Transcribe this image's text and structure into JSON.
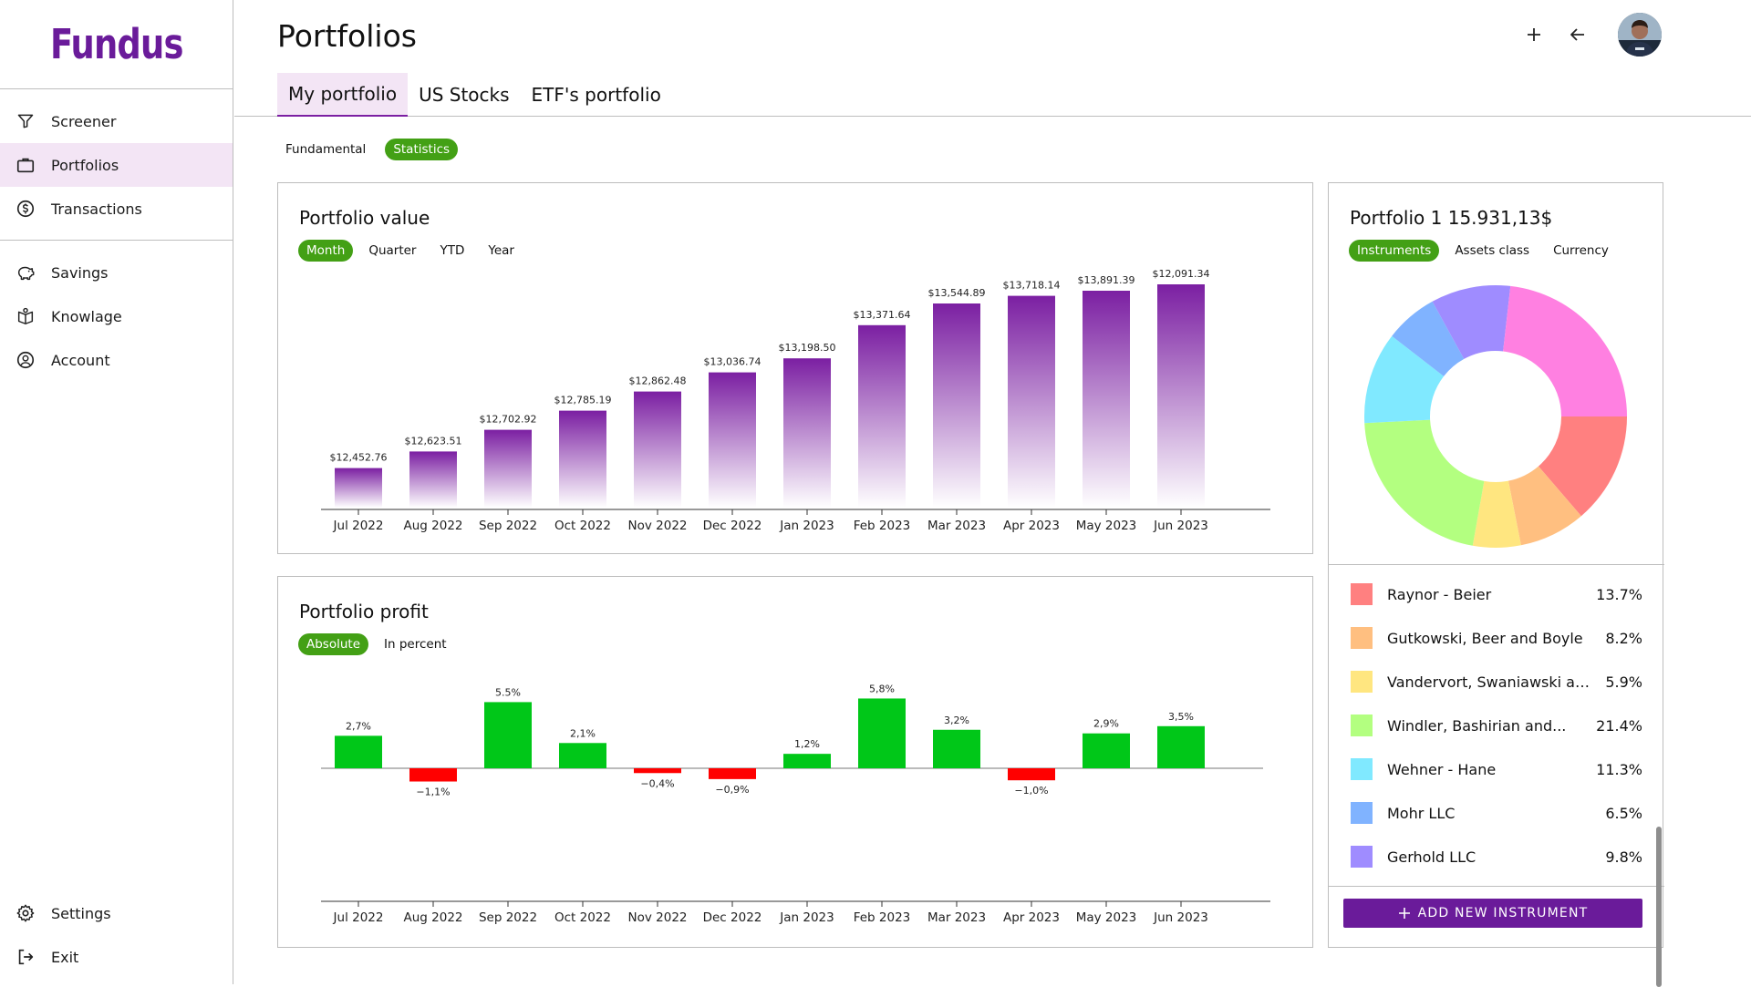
{
  "app": {
    "logo": "Fundus"
  },
  "sidebar": {
    "groups": [
      [
        {
          "label": "Screener",
          "icon": "filter-icon",
          "active": false
        },
        {
          "label": "Portfolios",
          "icon": "briefcase-icon",
          "active": true
        },
        {
          "label": "Transactions",
          "icon": "dollar-circle-icon",
          "active": false
        }
      ],
      [
        {
          "label": "Savings",
          "icon": "piggy-bank-icon",
          "active": false
        },
        {
          "label": "Knowlage",
          "icon": "book-icon",
          "active": false
        },
        {
          "label": "Account",
          "icon": "user-circle-icon",
          "active": false
        }
      ]
    ],
    "bottom": [
      {
        "label": "Settings",
        "icon": "gear-icon"
      },
      {
        "label": "Exit",
        "icon": "exit-icon"
      }
    ]
  },
  "header": {
    "title": "Portfolios",
    "tabs": [
      {
        "label": "My portfolio",
        "active": true
      },
      {
        "label": "US Stocks",
        "active": false
      },
      {
        "label": "ETF's portfolio",
        "active": false
      }
    ]
  },
  "view_toggle": [
    {
      "label": "Fundamental",
      "active": false
    },
    {
      "label": "Statistics",
      "active": true
    }
  ],
  "value_card": {
    "title": "Portfolio value",
    "periods": [
      {
        "label": "Month",
        "active": true
      },
      {
        "label": "Quarter",
        "active": false
      },
      {
        "label": "YTD",
        "active": false
      },
      {
        "label": "Year",
        "active": false
      }
    ]
  },
  "profit_card": {
    "title": "Portfolio profit",
    "modes": [
      {
        "label": "Absolute",
        "active": true
      },
      {
        "label": "In percent",
        "active": false
      }
    ]
  },
  "allocation_card": {
    "title": "Portfolio 1 15.931,13$",
    "modes": [
      {
        "label": "Instruments",
        "active": true
      },
      {
        "label": "Assets class",
        "active": false
      },
      {
        "label": "Currency",
        "active": false
      }
    ],
    "add_button": "ADD NEW INSTRUMENT"
  },
  "colors": {
    "accent": "#6a1b9a",
    "chip_active": "#43a015",
    "bar_top": "#7b1fa2",
    "profit_positive": "#00c718",
    "profit_negative": "#ff0000"
  },
  "chart_data": [
    {
      "type": "bar",
      "title": "Portfolio value",
      "categories": [
        "Jul 2022",
        "Aug 2022",
        "Sep 2022",
        "Oct 2022",
        "Nov 2022",
        "Dec 2022",
        "Jan 2023",
        "Feb 2023",
        "Mar 2023",
        "Apr 2023",
        "May 2023",
        "Jun 2023"
      ],
      "values": [
        12452.76,
        12623.51,
        12702.92,
        12785.19,
        12862.48,
        13036.74,
        13198.5,
        13371.64,
        13544.89,
        13718.14,
        13891.39,
        12091.34
      ],
      "labels": [
        "$12,452.76",
        "$12,623.51",
        "$12,702.92",
        "$12,785.19",
        "$12,862.48",
        "$13,036.74",
        "$13,198.50",
        "$13,371.64",
        "$13,544.89",
        "$13,718.14",
        "$13,891.39",
        "$12,091.34"
      ],
      "level": [
        0.155,
        0.22,
        0.305,
        0.38,
        0.455,
        0.53,
        0.585,
        0.715,
        0.8,
        0.83,
        0.85,
        0.875
      ],
      "grid": false
    },
    {
      "type": "bar",
      "title": "Portfolio profit",
      "categories": [
        "Jul 2022",
        "Aug 2022",
        "Sep 2022",
        "Oct 2022",
        "Nov 2022",
        "Dec 2022",
        "Jan 2023",
        "Feb 2023",
        "Mar 2023",
        "Apr 2023",
        "May 2023",
        "Jun 2023"
      ],
      "values": [
        2.7,
        -1.1,
        5.5,
        2.1,
        -0.4,
        -0.9,
        1.2,
        5.8,
        3.2,
        -1.0,
        2.9,
        3.5
      ],
      "labels": [
        "2,7%",
        "−1,1%",
        "5.5%",
        "2,1%",
        "−0,4%",
        "−0,9%",
        "1,2%",
        "5,8%",
        "3,2%",
        "−1,0%",
        "2,9%",
        "3,5%"
      ],
      "grid": false
    },
    {
      "type": "pie",
      "title": "Portfolio 1 15.931,13$",
      "slices": [
        {
          "name": "Raynor - Beier",
          "value": 13.7,
          "label": "13.7%",
          "color": "#ff8080"
        },
        {
          "name": "Gutkowski, Beer and Boyle",
          "value": 8.2,
          "label": "8.2%",
          "color": "#ffbf80"
        },
        {
          "name": "Vandervort, Swaniawski and Kessler",
          "value": 5.9,
          "label": "5.9%",
          "color": "#ffe680"
        },
        {
          "name": "Windler, Bashirian and Kuhn",
          "value": 21.4,
          "label": "21.4%",
          "color": "#b3ff80"
        },
        {
          "name": "Wehner - Hane",
          "value": 11.3,
          "label": "11.3%",
          "color": "#80e9ff"
        },
        {
          "name": "Mohr LLC",
          "value": 6.5,
          "label": "6.5%",
          "color": "#80b3ff"
        },
        {
          "name": "Gerhold LLC",
          "value": 9.8,
          "label": "9.8%",
          "color": "#9f8cff"
        },
        {
          "name": "",
          "value": 23.2,
          "label": "",
          "color": "#ff80e1"
        }
      ]
    }
  ]
}
